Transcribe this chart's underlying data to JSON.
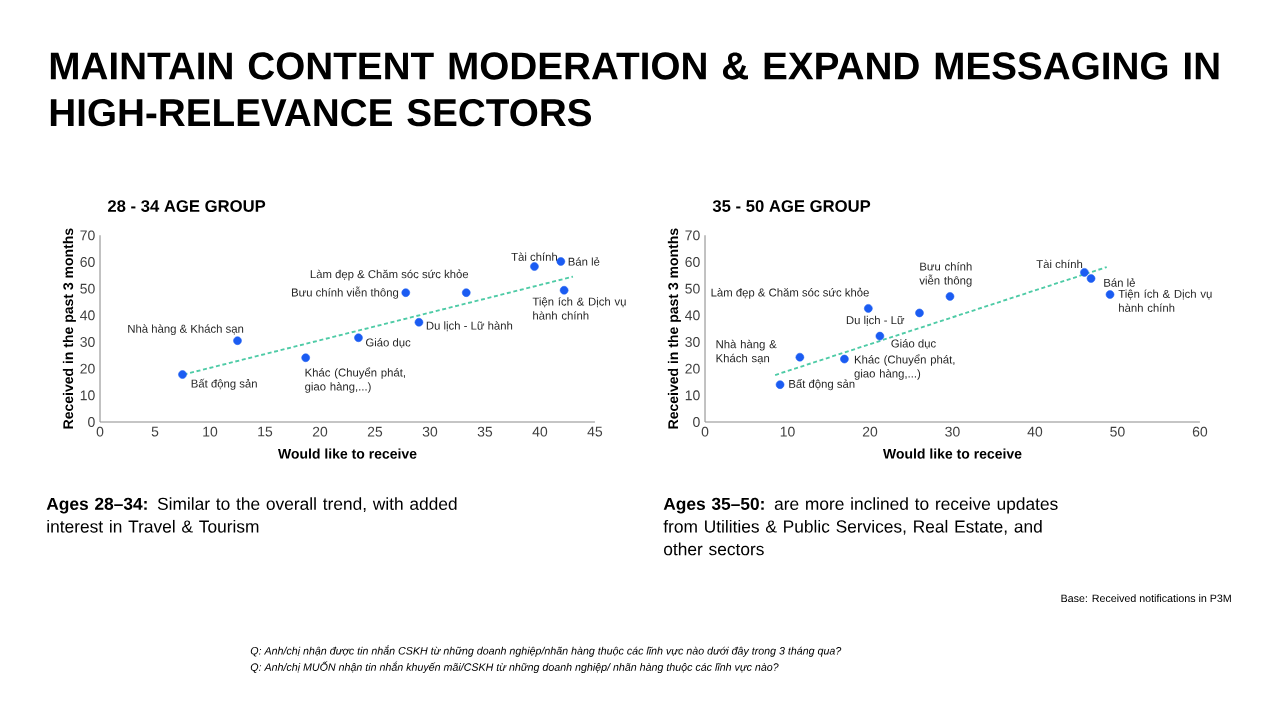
{
  "chart_data": [
    {
      "type": "scatter",
      "title": "28 - 34 AGE GROUP",
      "xlabel": "Would like to receive",
      "ylabel": "Received in the past 3 months",
      "xlim": [
        0,
        45
      ],
      "ylim": [
        0,
        70
      ],
      "xticks": [
        0,
        5,
        10,
        15,
        20,
        25,
        30,
        35,
        40,
        45
      ],
      "yticks": [
        0,
        10,
        20,
        30,
        40,
        50,
        60,
        70
      ],
      "series": [
        {
          "type": "scatter",
          "color": "#1b5cf2",
          "marker": "circle",
          "x": [
            7.5,
            12.5,
            18.7,
            23.5,
            27.8,
            29.0,
            33.3,
            39.5,
            41.9,
            42.2
          ],
          "values": [
            17.8,
            30.5,
            24.1,
            31.6,
            48.5,
            37.4,
            48.5,
            58.3,
            60.2,
            49.4
          ]
        },
        {
          "type": "line",
          "color": "#4ecba6",
          "line_style": "dashed",
          "x": [
            7.6,
            43.0
          ],
          "values": [
            17.8,
            54.5
          ]
        }
      ],
      "annotations": [
        "MAINTAIN CONTENT MODERATION & EXPAND MESSAGING IN HIGH-RELEVANCE SECTORS",
        "**Ages 28–34:** Similar to the overall trend, with added interest in Travel & Tourism",
        "Base: Received notifications in P3M",
        "Q: Anh/chị nhận được tin nhắn CSKH từ những doanh nghiệp/nhãn hàng thuộc các lĩnh vực nào dưới đây trong 3 tháng qua?",
        "Q: Anh/chị MUỐN nhận tin nhắn khuyến mãi/CSKH từ những doanh nghiệp/ nhãn hàng thuộc các lĩnh vực nào?",
        {
          "text": "Bất động sản",
          "x": 7.5,
          "y": 17.8
        },
        {
          "text": "Nhà hàng & Khách sạn",
          "x": 12.5,
          "y": 30.5
        },
        {
          "text": "Khác (Chuyển phát, giao hàng,...)",
          "x": 18.7,
          "y": 24.1
        },
        {
          "text": "Giáo dục",
          "x": 23.5,
          "y": 31.6
        },
        {
          "text": "Bưu chính viễn thông",
          "x": 27.8,
          "y": 48.5
        },
        {
          "text": "Du lịch - Lữ hành",
          "x": 29.0,
          "y": 37.4
        },
        {
          "text": "Làm đẹp & Chăm sóc sức khỏe",
          "x": 33.3,
          "y": 48.5
        },
        {
          "text": "Tài chính",
          "x": 39.5,
          "y": 58.3
        },
        {
          "text": "Bán lẻ",
          "x": 41.9,
          "y": 60.2
        },
        {
          "text": "Tiện ích & Dịch vụ hành chính",
          "x": 42.2,
          "y": 49.4
        }
      ]
    },
    {
      "type": "scatter",
      "title": "35 - 50 AGE GROUP",
      "xlabel": "Would like to receive",
      "ylabel": "Received in the past 3 months",
      "xlim": [
        0,
        60
      ],
      "ylim": [
        0,
        70
      ],
      "xticks": [
        0,
        10,
        20,
        30,
        40,
        50,
        60
      ],
      "yticks": [
        0,
        10,
        20,
        30,
        40,
        50,
        60,
        70
      ],
      "series": [
        {
          "type": "scatter",
          "color": "#1b5cf2",
          "marker": "circle",
          "x": [
            9.1,
            11.5,
            16.9,
            21.2,
            29.7,
            26.0,
            19.8,
            46.0,
            46.8,
            49.1
          ],
          "values": [
            14.0,
            24.3,
            23.6,
            32.2,
            47.1,
            40.9,
            42.6,
            56.1,
            53.8,
            47.8
          ]
        },
        {
          "type": "line",
          "color": "#4ecba6",
          "line_style": "dashed",
          "x": [
            8.5,
            48.7
          ],
          "values": [
            17.6,
            58.1
          ]
        }
      ],
      "annotations": [
        "**Ages 35–50:** are more inclined to receive updates from Utilities & Public Services, Real Estate, and other sectors",
        {
          "text": "Bất động sản",
          "x": 9.1,
          "y": 14.0
        },
        {
          "text": "Nhà hàng & Khách sạn",
          "x": 11.5,
          "y": 24.3
        },
        {
          "text": "Khác (Chuyển phát, giao hàng,...)",
          "x": 16.9,
          "y": 23.6
        },
        {
          "text": "Giáo dục",
          "x": 21.2,
          "y": 32.2
        },
        {
          "text": "Bưu chính viễn thông",
          "x": 29.7,
          "y": 47.1
        },
        {
          "text": "Du lịch - Lữ",
          "x": 26.0,
          "y": 40.9
        },
        {
          "text": "Làm đẹp & Chăm sóc sức khỏe",
          "x": 19.8,
          "y": 42.6
        },
        {
          "text": "Tài chính",
          "x": 46.0,
          "y": 56.1
        },
        {
          "text": "Bán lẻ",
          "x": 46.8,
          "y": 53.8
        },
        {
          "text": "Tiện ích & Dịch vụ hành chính",
          "x": 49.1,
          "y": 47.8
        }
      ]
    }
  ]
}
